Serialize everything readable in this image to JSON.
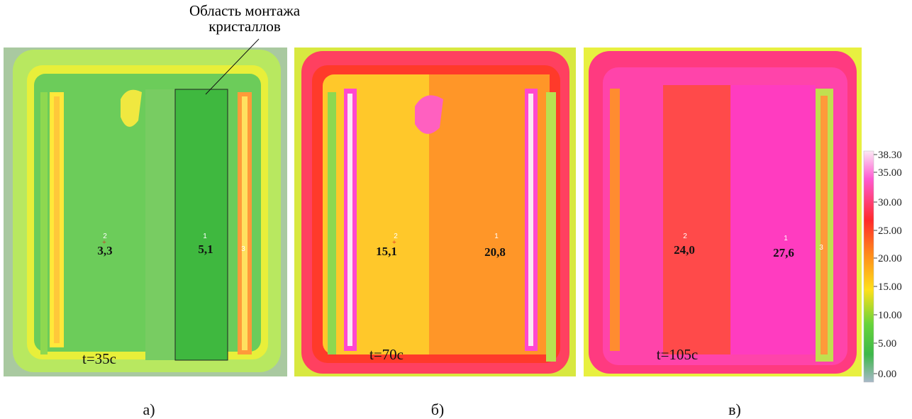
{
  "annotation": {
    "label": [
      "Область монтажа",
      "кристаллов"
    ]
  },
  "panels": [
    {
      "caption": "а)",
      "time": "t=35c",
      "points": [
        {
          "id": "2",
          "value": "3,3"
        },
        {
          "id": "1",
          "value": "5,1"
        },
        {
          "id": "3"
        }
      ]
    },
    {
      "caption": "б)",
      "time": "t=70c",
      "points": [
        {
          "id": "2",
          "value": "15,1"
        },
        {
          "id": "1",
          "value": "20,8"
        }
      ]
    },
    {
      "caption": "в)",
      "time": "t=105c",
      "points": [
        {
          "id": "2",
          "value": "24,0"
        },
        {
          "id": "1",
          "value": "27,6"
        },
        {
          "id": "3"
        }
      ]
    }
  ],
  "colorbar": {
    "ticks": [
      "38.30",
      "35.00",
      "30.00",
      "25.00",
      "20.00",
      "15.00",
      "10.00",
      "5.00",
      "0.00"
    ]
  }
}
